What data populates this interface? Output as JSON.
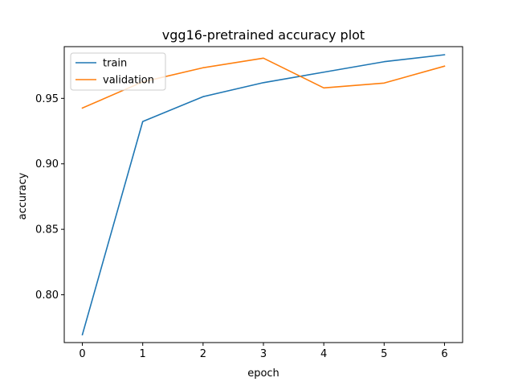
{
  "chart_data": {
    "type": "line",
    "title": "vgg16-pretrained accuracy plot",
    "xlabel": "epoch",
    "ylabel": "accuracy",
    "x": [
      0,
      1,
      2,
      3,
      4,
      5,
      6
    ],
    "xlim": [
      -0.3,
      6.3
    ],
    "ylim": [
      0.7635,
      0.9895
    ],
    "xticks": [
      0,
      1,
      2,
      3,
      4,
      5,
      6
    ],
    "yticks": [
      0.8,
      0.85,
      0.9,
      0.95
    ],
    "ytick_labels": [
      "0.80",
      "0.85",
      "0.90",
      "0.95"
    ],
    "grid": false,
    "legend": {
      "placement": "upper left"
    },
    "series": [
      {
        "name": "train",
        "color": "#1f77b4",
        "values": [
          0.7695,
          0.9323,
          0.9513,
          0.962,
          0.97,
          0.978,
          0.9833
        ]
      },
      {
        "name": "validation",
        "color": "#ff7f0e",
        "values": [
          0.9426,
          0.9626,
          0.9734,
          0.9807,
          0.958,
          0.9617,
          0.9746
        ]
      }
    ]
  }
}
